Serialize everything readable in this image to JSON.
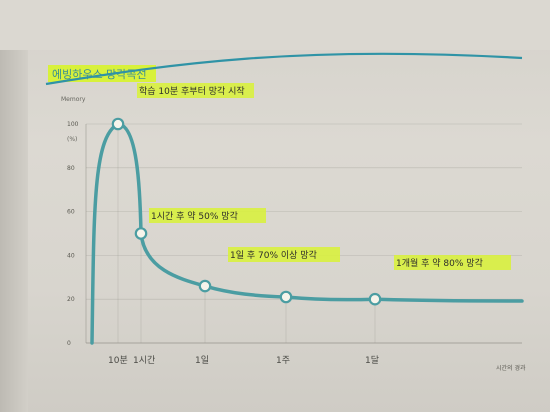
{
  "chart_data": {
    "type": "line",
    "title": "에빙하우스 망각곡선",
    "ylabel": "Memory",
    "yunit": "(%)",
    "xlabel": "시간의 경과",
    "ylim": [
      0,
      100
    ],
    "yticks": [
      0,
      20,
      40,
      60,
      80,
      100
    ],
    "xticks": [
      "10분",
      "1시간",
      "1일",
      "1주",
      "1달"
    ],
    "series": [
      {
        "values": [
          {
            "x": "10분",
            "y": 100
          },
          {
            "x": "1시간",
            "y": 50
          },
          {
            "x": "1일",
            "y": 26
          },
          {
            "x": "1주",
            "y": 21
          },
          {
            "x": "1달",
            "y": 20
          }
        ]
      }
    ],
    "annotations": [
      {
        "text": "학습 10분 후부터 망각 시작",
        "x": "10분"
      },
      {
        "text": "1시간 후 약 50% 망각",
        "x": "1시간"
      },
      {
        "text": "1일 후 70% 이상 망각",
        "x": "1일"
      },
      {
        "text": "1개월 후 약 80% 망각",
        "x": "1달"
      }
    ],
    "colors": {
      "line": "#4b9da2",
      "title_line": "#2f93a6",
      "highlight": "#d8f13b",
      "grid": "#8e8c85"
    }
  }
}
